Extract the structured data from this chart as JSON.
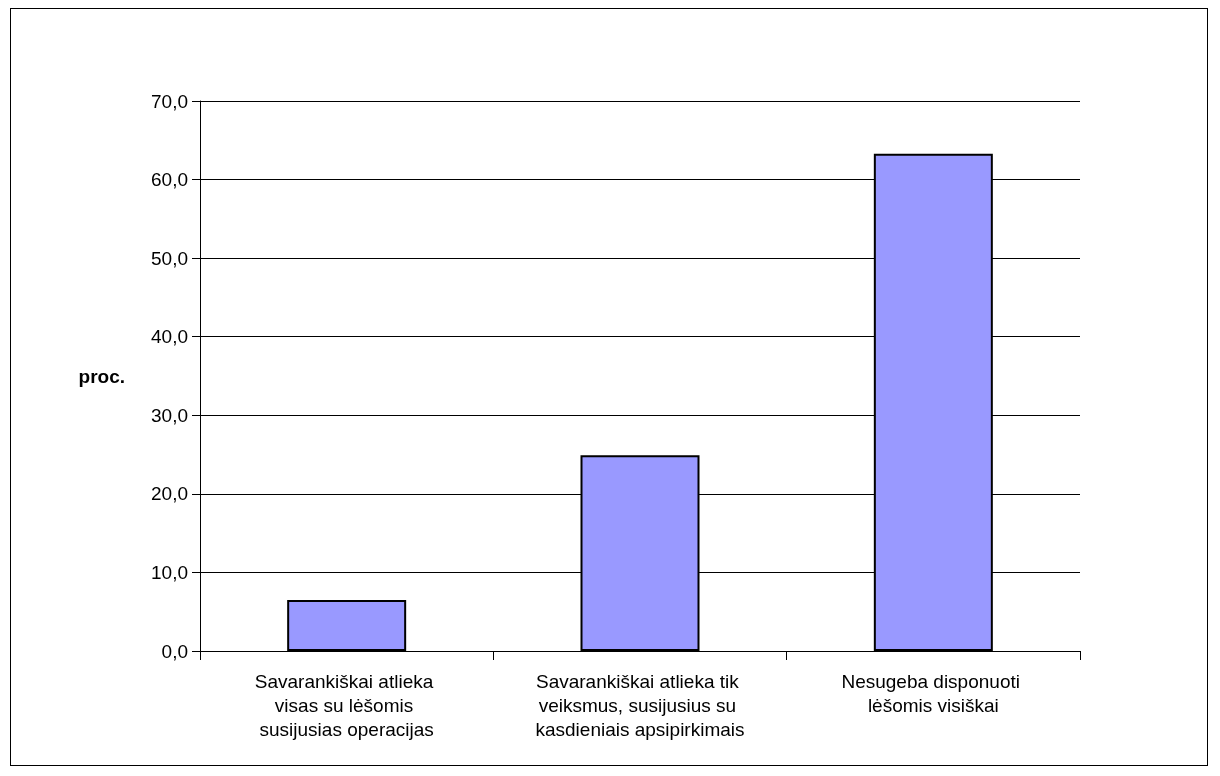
{
  "chart_data": {
    "type": "bar",
    "ylabel": "proc.",
    "categories": [
      "Savarankiškai atlieka visas su lėšomis susijusias operacijas",
      "Savarankiškai atlieka tik veiksmus, susijusius su kasdieniais apsipirkimais",
      "Nesugeba disponuoti lėšomis visiškai"
    ],
    "values": [
      6.5,
      24.9,
      63.3
    ],
    "color": "#9999ff",
    "ylim": [
      0,
      70
    ],
    "yticks": [
      {
        "value": 0,
        "label": "0,0"
      },
      {
        "value": 10,
        "label": "10,0"
      },
      {
        "value": 20,
        "label": "20,0"
      },
      {
        "value": 30,
        "label": "30,0"
      },
      {
        "value": 40,
        "label": "40,0"
      },
      {
        "value": 50,
        "label": "50,0"
      },
      {
        "value": 60,
        "label": "60,0"
      },
      {
        "value": 70,
        "label": "70,0"
      }
    ],
    "grid": "y"
  }
}
